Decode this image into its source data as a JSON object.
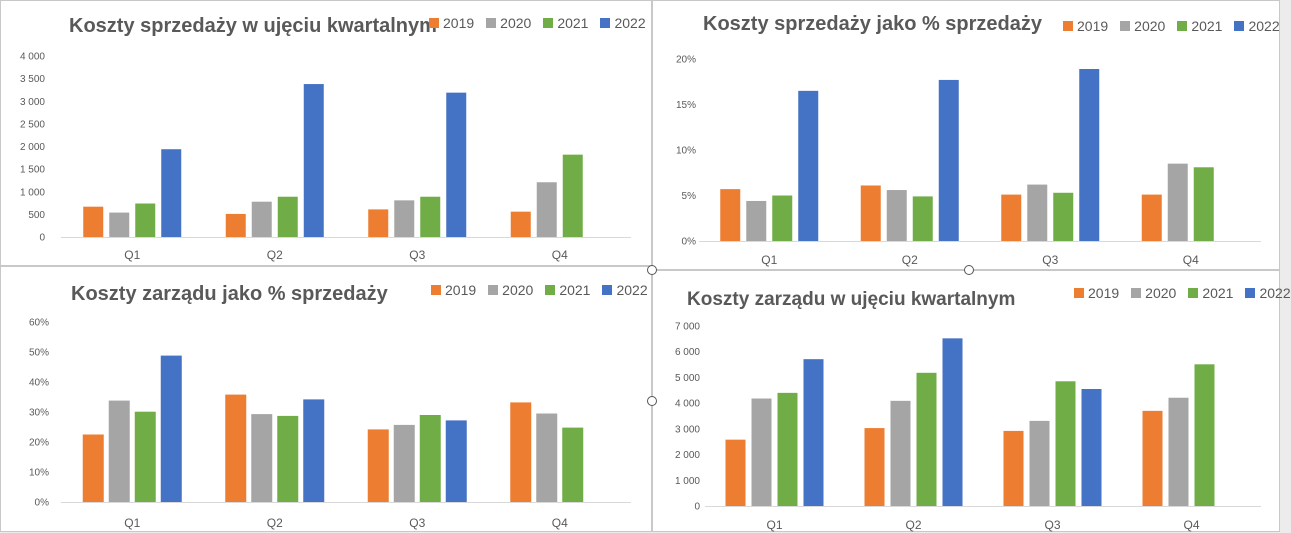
{
  "colors": {
    "2019": "#ED7D31",
    "2020": "#A5A5A5",
    "2021": "#70AD47",
    "2022": "#4472C4"
  },
  "legend": [
    "2019",
    "2020",
    "2021",
    "2022"
  ],
  "charts": {
    "sales_costs": {
      "title": "Koszty sprzedaży w ujęciu kwartalnym"
    },
    "sales_costs_pct": {
      "title": "Koszty sprzedaży jako % sprzedaży"
    },
    "admin_costs_pct": {
      "title": "Koszty zarządu jako % sprzedaży"
    },
    "admin_costs": {
      "title": "Koszty zarządu w ujęciu kwartalnym"
    }
  },
  "chart_data": [
    {
      "type": "bar",
      "title": "Koszty sprzedaży w ujęciu kwartalnym",
      "categories": [
        "Q1",
        "Q2",
        "Q3",
        "Q4"
      ],
      "ylim": [
        0,
        4000
      ],
      "yticks": [
        "0",
        "500",
        "1 000",
        "1 500",
        "2 000",
        "2 500",
        "3 000",
        "3 500",
        "4 000"
      ],
      "series": [
        {
          "name": "2019",
          "values": [
            670,
            510,
            610,
            560
          ]
        },
        {
          "name": "2020",
          "values": [
            540,
            780,
            810,
            1210
          ]
        },
        {
          "name": "2021",
          "values": [
            740,
            890,
            890,
            1820
          ]
        },
        {
          "name": "2022",
          "values": [
            1940,
            3380,
            3190,
            null
          ]
        }
      ]
    },
    {
      "type": "bar",
      "title": "Koszty sprzedaży jako % sprzedaży",
      "categories": [
        "Q1",
        "Q2",
        "Q3",
        "Q4"
      ],
      "ylim": [
        0,
        20
      ],
      "yticks": [
        "0%",
        "5%",
        "10%",
        "15%",
        "20%"
      ],
      "series": [
        {
          "name": "2019",
          "values": [
            5.7,
            6.1,
            5.1,
            5.1
          ]
        },
        {
          "name": "2020",
          "values": [
            4.4,
            5.6,
            6.2,
            8.5
          ]
        },
        {
          "name": "2021",
          "values": [
            5.0,
            4.9,
            5.3,
            8.1
          ]
        },
        {
          "name": "2022",
          "values": [
            16.5,
            17.7,
            18.9,
            null
          ]
        }
      ]
    },
    {
      "type": "bar",
      "title": "Koszty zarządu jako % sprzedaży",
      "categories": [
        "Q1",
        "Q2",
        "Q3",
        "Q4"
      ],
      "ylim": [
        0,
        60
      ],
      "yticks": [
        "0%",
        "10%",
        "20%",
        "30%",
        "40%",
        "50%",
        "60%"
      ],
      "series": [
        {
          "name": "2019",
          "values": [
            22.5,
            35.8,
            24.2,
            33.2
          ]
        },
        {
          "name": "2020",
          "values": [
            33.8,
            29.3,
            25.7,
            29.5
          ]
        },
        {
          "name": "2021",
          "values": [
            30.1,
            28.7,
            29.0,
            24.8
          ]
        },
        {
          "name": "2022",
          "values": [
            48.8,
            34.2,
            27.2,
            null
          ]
        }
      ]
    },
    {
      "type": "bar",
      "title": "Koszty zarządu w ujęciu kwartalnym",
      "categories": [
        "Q1",
        "Q2",
        "Q3",
        "Q4"
      ],
      "ylim": [
        0,
        7000
      ],
      "yticks": [
        "0",
        "1 000",
        "2 000",
        "3 000",
        "4 000",
        "5 000",
        "6 000",
        "7 000"
      ],
      "series": [
        {
          "name": "2019",
          "values": [
            2580,
            3030,
            2920,
            3700
          ]
        },
        {
          "name": "2020",
          "values": [
            4180,
            4090,
            3310,
            4210
          ]
        },
        {
          "name": "2021",
          "values": [
            4400,
            5180,
            4850,
            5510
          ]
        },
        {
          "name": "2022",
          "values": [
            5710,
            6520,
            4550,
            null
          ]
        }
      ]
    }
  ]
}
